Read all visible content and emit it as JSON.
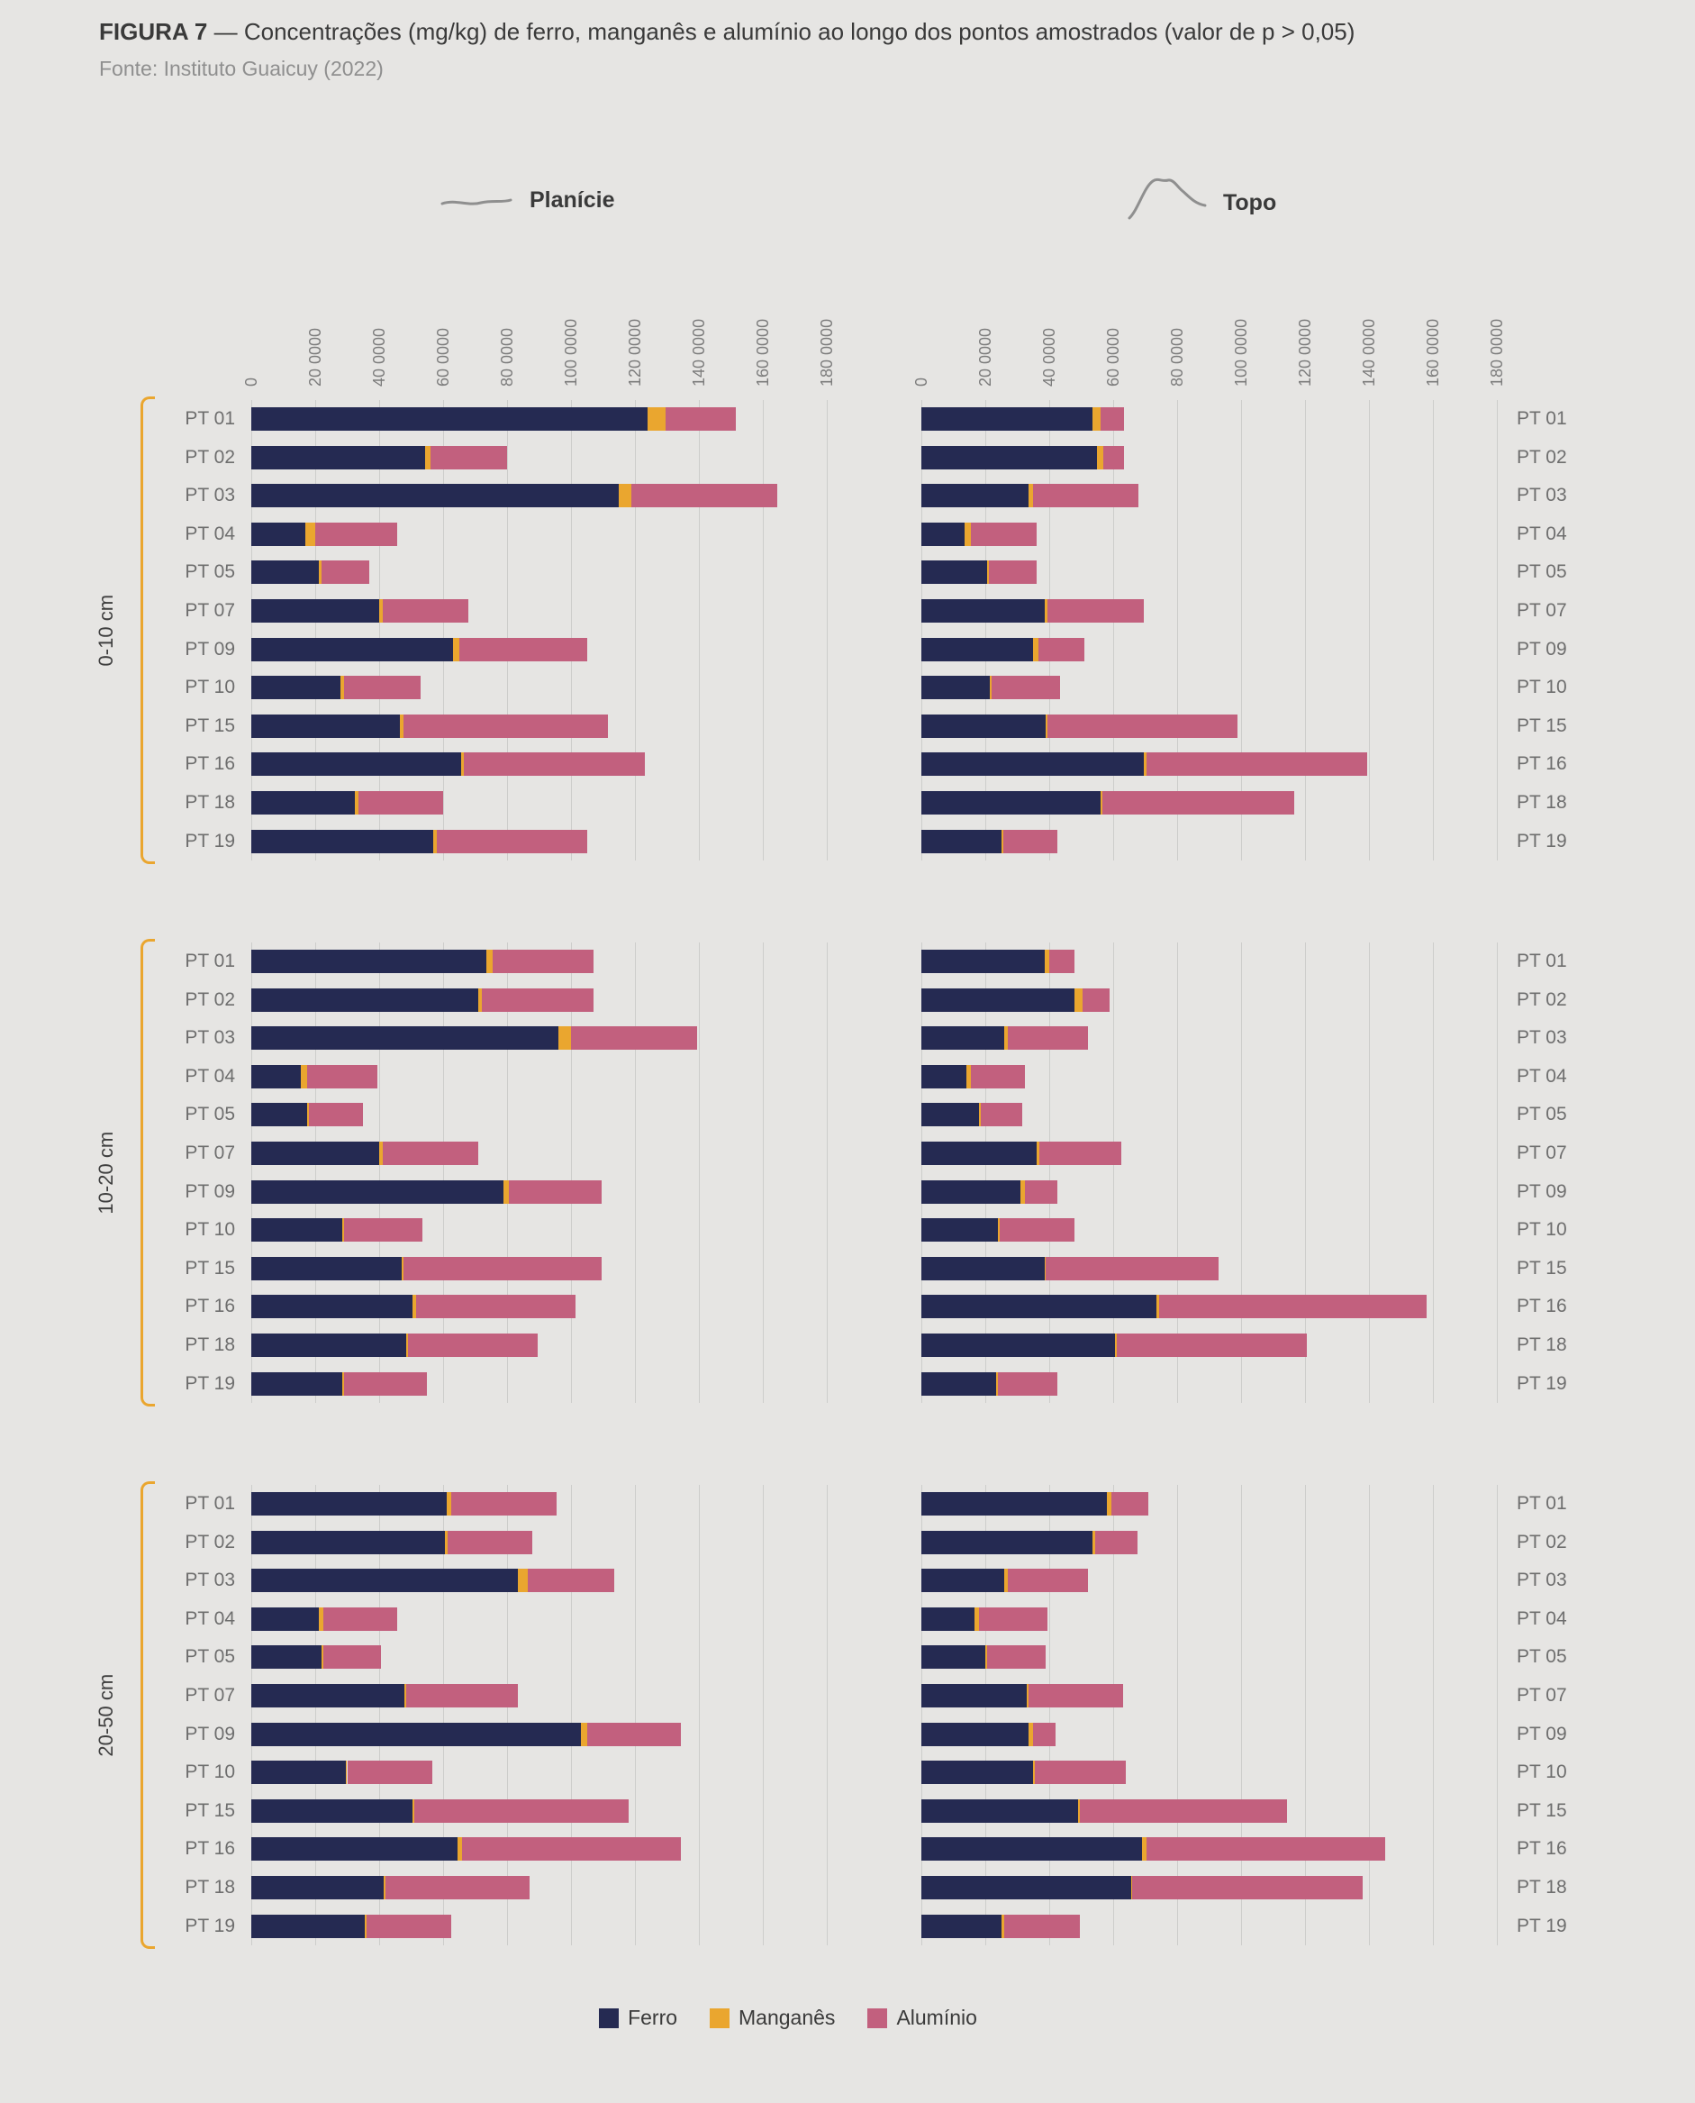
{
  "figure": {
    "label": "FIGURA 7",
    "title": "— Concentrações (mg/kg) de ferro, manganês e alumínio ao longo dos pontos amostrados (valor de p > 0,05)",
    "source": "Fonte: Instituto Guaicuy (2022)"
  },
  "columns": [
    {
      "label": "Planície",
      "icon": "plain-profile-icon"
    },
    {
      "label": "Topo",
      "icon": "hill-profile-icon"
    }
  ],
  "depth_rows": [
    "0-10 cm",
    "10-20 cm",
    "20-50 cm"
  ],
  "categories": [
    "PT 01",
    "PT 02",
    "PT 03",
    "PT 04",
    "PT 05",
    "PT 07",
    "PT 09",
    "PT 10",
    "PT 15",
    "PT 16",
    "PT 18",
    "PT 19"
  ],
  "axis": {
    "ticks": [
      "0",
      "20 0000",
      "40 0000",
      "60 0000",
      "80 0000",
      "100 0000",
      "120 0000",
      "140 0000",
      "160 0000",
      "180 0000"
    ],
    "max": 1800000
  },
  "legend": [
    {
      "label": "Ferro",
      "color": "#252a52"
    },
    {
      "label": "Manganês",
      "color": "#eaa62f"
    },
    {
      "label": "Alumínio",
      "color": "#c2607e"
    }
  ],
  "colors": {
    "background": "#e6e5e3",
    "gridline": "#cdcdcb",
    "bracket": "#eaa62f",
    "icon_stroke": "#8f8f8f"
  },
  "chart_data": [
    {
      "type": "bar",
      "orientation": "horizontal",
      "stacked": true,
      "depth": "0-10 cm",
      "terrain": "Planície",
      "xlim": [
        0,
        1800000
      ],
      "categories": [
        "PT 01",
        "PT 02",
        "PT 03",
        "PT 04",
        "PT 05",
        "PT 07",
        "PT 09",
        "PT 10",
        "PT 15",
        "PT 16",
        "PT 18",
        "PT 19"
      ],
      "series": [
        {
          "name": "Ferro",
          "values": [
            1240000,
            545000,
            1150000,
            170000,
            210000,
            400000,
            630000,
            280000,
            465000,
            655000,
            325000,
            570000
          ]
        },
        {
          "name": "Manganês",
          "values": [
            55000,
            15000,
            40000,
            30000,
            10000,
            10000,
            20000,
            10000,
            10000,
            10000,
            10000,
            10000
          ]
        },
        {
          "name": "Alumínio",
          "values": [
            220000,
            240000,
            455000,
            255000,
            150000,
            270000,
            400000,
            240000,
            640000,
            565000,
            265000,
            470000
          ]
        }
      ]
    },
    {
      "type": "bar",
      "orientation": "horizontal",
      "stacked": true,
      "depth": "0-10 cm",
      "terrain": "Topo",
      "xlim": [
        0,
        1800000
      ],
      "categories": [
        "PT 01",
        "PT 02",
        "PT 03",
        "PT 04",
        "PT 05",
        "PT 07",
        "PT 09",
        "PT 10",
        "PT 15",
        "PT 16",
        "PT 18",
        "PT 19"
      ],
      "series": [
        {
          "name": "Ferro",
          "values": [
            535000,
            550000,
            335000,
            135000,
            205000,
            385000,
            350000,
            215000,
            390000,
            695000,
            560000,
            250000
          ]
        },
        {
          "name": "Manganês",
          "values": [
            25000,
            20000,
            15000,
            20000,
            5000,
            10000,
            15000,
            5000,
            5000,
            10000,
            5000,
            5000
          ]
        },
        {
          "name": "Alumínio",
          "values": [
            75000,
            65000,
            330000,
            205000,
            150000,
            300000,
            145000,
            215000,
            595000,
            690000,
            600000,
            170000
          ]
        }
      ]
    },
    {
      "type": "bar",
      "orientation": "horizontal",
      "stacked": true,
      "depth": "10-20 cm",
      "terrain": "Planície",
      "xlim": [
        0,
        1800000
      ],
      "categories": [
        "PT 01",
        "PT 02",
        "PT 03",
        "PT 04",
        "PT 05",
        "PT 07",
        "PT 09",
        "PT 10",
        "PT 15",
        "PT 16",
        "PT 18",
        "PT 19"
      ],
      "series": [
        {
          "name": "Ferro",
          "values": [
            735000,
            710000,
            960000,
            155000,
            175000,
            400000,
            790000,
            285000,
            470000,
            505000,
            485000,
            285000
          ]
        },
        {
          "name": "Manganês",
          "values": [
            20000,
            10000,
            40000,
            20000,
            5000,
            10000,
            15000,
            5000,
            5000,
            10000,
            5000,
            5000
          ]
        },
        {
          "name": "Alumínio",
          "values": [
            315000,
            350000,
            395000,
            220000,
            170000,
            300000,
            290000,
            245000,
            620000,
            500000,
            405000,
            260000
          ]
        }
      ]
    },
    {
      "type": "bar",
      "orientation": "horizontal",
      "stacked": true,
      "depth": "10-20 cm",
      "terrain": "Topo",
      "xlim": [
        0,
        1800000
      ],
      "categories": [
        "PT 01",
        "PT 02",
        "PT 03",
        "PT 04",
        "PT 05",
        "PT 07",
        "PT 09",
        "PT 10",
        "PT 15",
        "PT 16",
        "PT 18",
        "PT 19"
      ],
      "series": [
        {
          "name": "Ferro",
          "values": [
            385000,
            480000,
            260000,
            140000,
            180000,
            360000,
            310000,
            240000,
            385000,
            735000,
            605000,
            235000
          ]
        },
        {
          "name": "Manganês",
          "values": [
            15000,
            25000,
            10000,
            15000,
            5000,
            10000,
            15000,
            5000,
            5000,
            10000,
            5000,
            5000
          ]
        },
        {
          "name": "Alumínio",
          "values": [
            80000,
            85000,
            250000,
            170000,
            130000,
            255000,
            100000,
            235000,
            540000,
            835000,
            595000,
            185000
          ]
        }
      ]
    },
    {
      "type": "bar",
      "orientation": "horizontal",
      "stacked": true,
      "depth": "20-50 cm",
      "terrain": "Planície",
      "xlim": [
        0,
        1800000
      ],
      "categories": [
        "PT 01",
        "PT 02",
        "PT 03",
        "PT 04",
        "PT 05",
        "PT 07",
        "PT 09",
        "PT 10",
        "PT 15",
        "PT 16",
        "PT 18",
        "PT 19"
      ],
      "series": [
        {
          "name": "Ferro",
          "values": [
            610000,
            605000,
            835000,
            210000,
            220000,
            480000,
            1030000,
            295000,
            505000,
            645000,
            415000,
            355000
          ]
        },
        {
          "name": "Manganês",
          "values": [
            15000,
            10000,
            30000,
            15000,
            5000,
            5000,
            20000,
            5000,
            5000,
            15000,
            5000,
            5000
          ]
        },
        {
          "name": "Alumínio",
          "values": [
            330000,
            265000,
            270000,
            230000,
            180000,
            350000,
            295000,
            265000,
            670000,
            685000,
            450000,
            265000
          ]
        }
      ]
    },
    {
      "type": "bar",
      "orientation": "horizontal",
      "stacked": true,
      "depth": "20-50 cm",
      "terrain": "Topo",
      "xlim": [
        0,
        1800000
      ],
      "categories": [
        "PT 01",
        "PT 02",
        "PT 03",
        "PT 04",
        "PT 05",
        "PT 07",
        "PT 09",
        "PT 10",
        "PT 15",
        "PT 16",
        "PT 18",
        "PT 19"
      ],
      "series": [
        {
          "name": "Ferro",
          "values": [
            580000,
            535000,
            260000,
            165000,
            200000,
            330000,
            335000,
            350000,
            490000,
            690000,
            655000,
            250000
          ]
        },
        {
          "name": "Manganês",
          "values": [
            15000,
            10000,
            10000,
            15000,
            5000,
            5000,
            15000,
            5000,
            5000,
            15000,
            5000,
            10000
          ]
        },
        {
          "name": "Alumínio",
          "values": [
            115000,
            130000,
            250000,
            215000,
            185000,
            295000,
            70000,
            285000,
            650000,
            745000,
            720000,
            235000
          ]
        }
      ]
    }
  ]
}
